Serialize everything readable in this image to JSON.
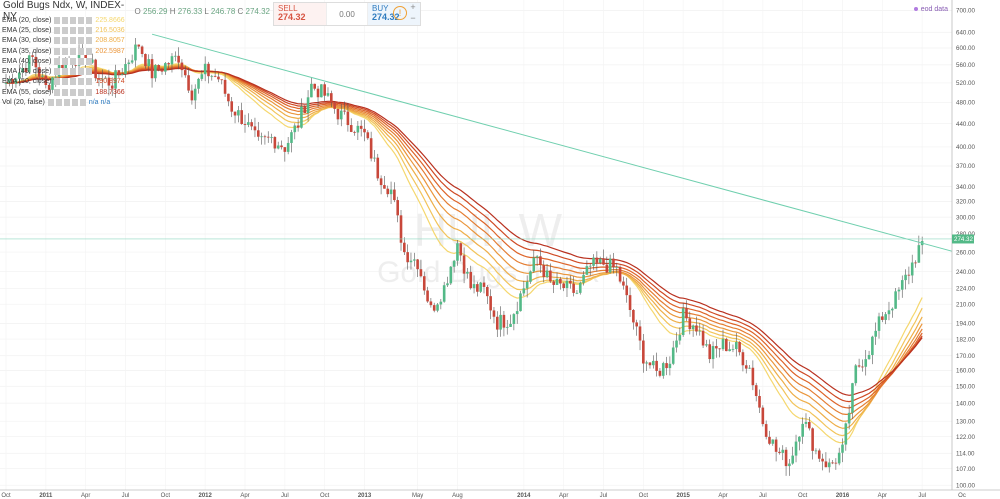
{
  "header": {
    "title": "Gold Bugs Ndx, W, INDEX-NY",
    "ohlc": {
      "o_label": "O",
      "o": "256.29",
      "h_label": "H",
      "h": "276.33",
      "l_label": "L",
      "l": "246.78",
      "c_label": "C",
      "c": "274.32"
    }
  },
  "trade": {
    "sell_label": "SELL",
    "sell_value": "274.32",
    "spread": "0.00",
    "buy_label": "BUY",
    "buy_value": "274.32",
    "plus": "+",
    "minus": "−",
    "info": "!"
  },
  "eod_label": "eod data",
  "watermark": {
    "symbol": "HUI, W",
    "name": "Gold Bugs Index"
  },
  "indicators": [
    {
      "label": "EMA (20, close)",
      "value": "225.8666",
      "color": "#f5d76e"
    },
    {
      "label": "EMA (25, close)",
      "value": "216.5036",
      "color": "#f2c45a"
    },
    {
      "label": "EMA (30, close)",
      "value": "208.8057",
      "color": "#eeae48"
    },
    {
      "label": "EMA (35, close)",
      "value": "202.5987",
      "color": "#ea963c"
    },
    {
      "label": "EMA (40, close)",
      "value": "",
      "color": "#e47d32"
    },
    {
      "label": "EMA (45, close)",
      "value": "",
      "color": "#dd6429"
    },
    {
      "label": "EMA (50, close)",
      "value": "190.8974",
      "color": "#cf4a24"
    },
    {
      "label": "EMA (55, close)",
      "value": "188.7366",
      "color": "#b9311f"
    },
    {
      "label": "Vol (20, false)",
      "value": "n/a n/a",
      "color": "#2e7bbf"
    }
  ],
  "chart_data": {
    "type": "candlestick",
    "series_name": "Gold Bugs Ndx",
    "interval": "W",
    "exchange": "INDEX-NY",
    "y_scale": "log",
    "y_ticks": [
      100,
      107,
      114,
      122,
      130,
      140,
      150,
      160,
      170,
      182,
      194,
      210,
      224,
      240,
      260,
      280,
      300,
      320,
      340,
      370,
      400,
      440,
      480,
      520,
      560,
      600,
      640,
      700
    ],
    "y_tick_labels": [
      "100.00",
      "107.00",
      "114.00",
      "122.00",
      "130.00",
      "140.00",
      "150.00",
      "160.00",
      "170.00",
      "182.00",
      "194.00",
      "210.00",
      "224.00",
      "240.00",
      "260.00",
      "280.00",
      "300.00",
      "320.00",
      "340.00",
      "370.00",
      "400.00",
      "440.00",
      "480.00",
      "520.00",
      "560.00",
      "600.00",
      "640.00",
      "700.00"
    ],
    "x_ticks": [
      "Oct",
      "2011",
      "Apr",
      "Jul",
      "Oct",
      "2012",
      "Apr",
      "Jul",
      "Oct",
      "2013",
      "May",
      "Aug",
      "2014",
      "Apr",
      "Jul",
      "Oct",
      "2015",
      "Apr",
      "Jul",
      "Oct",
      "2016",
      "Apr",
      "Jul",
      "Oc"
    ],
    "x_range": [
      "2010-10",
      "2016-10"
    ],
    "last_price": "274.32",
    "trendline": {
      "from": {
        "date": "2011-09",
        "price": 635
      },
      "to": {
        "date": "2016-10",
        "price": 258
      }
    },
    "horizontal_line": 274.32,
    "ema_last": [
      225.8666,
      216.5036,
      208.8057,
      202.5987,
      198.4,
      194.4,
      190.8974,
      188.7366
    ],
    "closes": [
      {
        "date": "2010-10",
        "close": 520
      },
      {
        "date": "2010-11",
        "close": 545
      },
      {
        "date": "2010-12",
        "close": 575
      },
      {
        "date": "2011-01",
        "close": 510
      },
      {
        "date": "2011-02",
        "close": 555
      },
      {
        "date": "2011-03",
        "close": 575
      },
      {
        "date": "2011-04",
        "close": 580
      },
      {
        "date": "2011-05",
        "close": 530
      },
      {
        "date": "2011-06",
        "close": 520
      },
      {
        "date": "2011-07",
        "close": 560
      },
      {
        "date": "2011-08",
        "close": 610
      },
      {
        "date": "2011-09",
        "close": 540
      },
      {
        "date": "2011-10",
        "close": 560
      },
      {
        "date": "2011-11",
        "close": 580
      },
      {
        "date": "2011-12",
        "close": 500
      },
      {
        "date": "2012-01",
        "close": 545
      },
      {
        "date": "2012-02",
        "close": 530
      },
      {
        "date": "2012-03",
        "close": 470
      },
      {
        "date": "2012-04",
        "close": 445
      },
      {
        "date": "2012-05",
        "close": 405
      },
      {
        "date": "2012-06",
        "close": 415
      },
      {
        "date": "2012-07",
        "close": 400
      },
      {
        "date": "2012-08",
        "close": 440
      },
      {
        "date": "2012-09",
        "close": 515
      },
      {
        "date": "2012-10",
        "close": 495
      },
      {
        "date": "2012-11",
        "close": 460
      },
      {
        "date": "2012-12",
        "close": 440
      },
      {
        "date": "2013-01",
        "close": 420
      },
      {
        "date": "2013-02",
        "close": 360
      },
      {
        "date": "2013-03",
        "close": 335
      },
      {
        "date": "2013-04",
        "close": 260
      },
      {
        "date": "2013-05",
        "close": 250
      },
      {
        "date": "2013-06",
        "close": 205
      },
      {
        "date": "2013-07",
        "close": 225
      },
      {
        "date": "2013-08",
        "close": 270
      },
      {
        "date": "2013-09",
        "close": 225
      },
      {
        "date": "2013-10",
        "close": 222
      },
      {
        "date": "2013-11",
        "close": 195
      },
      {
        "date": "2013-12",
        "close": 198
      },
      {
        "date": "2014-01",
        "close": 225
      },
      {
        "date": "2014-02",
        "close": 255
      },
      {
        "date": "2014-03",
        "close": 228
      },
      {
        "date": "2014-04",
        "close": 225
      },
      {
        "date": "2014-05",
        "close": 220
      },
      {
        "date": "2014-06",
        "close": 245
      },
      {
        "date": "2014-07",
        "close": 248
      },
      {
        "date": "2014-08",
        "close": 242
      },
      {
        "date": "2014-09",
        "close": 205
      },
      {
        "date": "2014-10",
        "close": 170
      },
      {
        "date": "2014-11",
        "close": 158
      },
      {
        "date": "2014-12",
        "close": 168
      },
      {
        "date": "2015-01",
        "close": 200
      },
      {
        "date": "2015-02",
        "close": 192
      },
      {
        "date": "2015-03",
        "close": 170
      },
      {
        "date": "2015-04",
        "close": 178
      },
      {
        "date": "2015-05",
        "close": 175
      },
      {
        "date": "2015-06",
        "close": 162
      },
      {
        "date": "2015-07",
        "close": 130
      },
      {
        "date": "2015-08",
        "close": 115
      },
      {
        "date": "2015-09",
        "close": 110
      },
      {
        "date": "2015-10",
        "close": 132
      },
      {
        "date": "2015-11",
        "close": 115
      },
      {
        "date": "2015-12",
        "close": 108
      },
      {
        "date": "2016-01",
        "close": 115
      },
      {
        "date": "2016-02",
        "close": 160
      },
      {
        "date": "2016-03",
        "close": 175
      },
      {
        "date": "2016-04",
        "close": 200
      },
      {
        "date": "2016-05",
        "close": 215
      },
      {
        "date": "2016-06",
        "close": 240
      },
      {
        "date": "2016-07",
        "close": 272
      }
    ]
  }
}
